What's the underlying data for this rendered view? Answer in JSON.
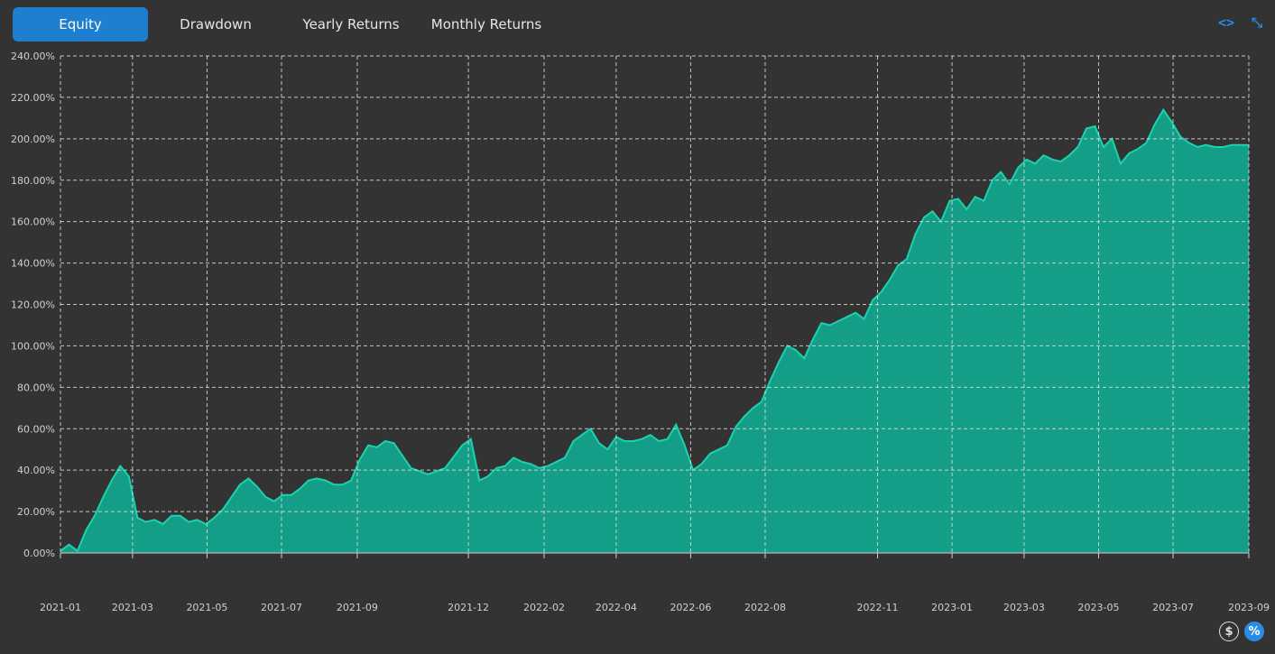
{
  "tabs": [
    {
      "label": "Equity",
      "active": true
    },
    {
      "label": "Drawdown",
      "active": false
    },
    {
      "label": "Yearly Returns",
      "active": false
    },
    {
      "label": "Monthly Returns",
      "active": false
    }
  ],
  "toolbar": {
    "code_icon": "code-icon",
    "collapse_icon": "collapse-icon",
    "code_glyph": "<>",
    "collapse_glyph": "⤡"
  },
  "unit_toggle": {
    "dollar_label": "$",
    "percent_label": "%",
    "selected": "percent"
  },
  "colors": {
    "accent": "#1e7fd1",
    "area_fill": "#159e87",
    "area_line": "#1ad3ad",
    "grid": "#dddddd",
    "background": "#333333"
  },
  "chart_data": {
    "type": "area",
    "title": "",
    "xlabel": "",
    "ylabel": "",
    "ylim": [
      0,
      240
    ],
    "yticks": [
      "0.00%",
      "20.00%",
      "40.00%",
      "60.00%",
      "80.00%",
      "100.00%",
      "120.00%",
      "140.00%",
      "160.00%",
      "180.00%",
      "200.00%",
      "220.00%",
      "240.00%"
    ],
    "xticks": [
      "2021-01",
      "2021-03",
      "2021-05",
      "2021-07",
      "2021-09",
      "2021-12",
      "2022-02",
      "2022-04",
      "2022-06",
      "2022-08",
      "2022-11",
      "2023-01",
      "2023-03",
      "2023-05",
      "2023-07",
      "2023-09"
    ],
    "grid": true,
    "series": [
      {
        "x": [
          "2021-01-01",
          "2021-01-08",
          "2021-01-15",
          "2021-01-22",
          "2021-01-29",
          "2021-02-05",
          "2021-02-12",
          "2021-02-19",
          "2021-02-26",
          "2021-03-05",
          "2021-03-12",
          "2021-03-19",
          "2021-03-26",
          "2021-04-02",
          "2021-04-09",
          "2021-04-16",
          "2021-04-23",
          "2021-04-30",
          "2021-05-07",
          "2021-05-14",
          "2021-05-21",
          "2021-05-28",
          "2021-06-04",
          "2021-06-11",
          "2021-06-18",
          "2021-06-25",
          "2021-07-02",
          "2021-07-09",
          "2021-07-16",
          "2021-07-23",
          "2021-07-30",
          "2021-08-06",
          "2021-08-13",
          "2021-08-20",
          "2021-08-27",
          "2021-09-03",
          "2021-09-10",
          "2021-09-17",
          "2021-09-24",
          "2021-10-01",
          "2021-10-15",
          "2021-10-29",
          "2021-11-12",
          "2021-11-26",
          "2021-12-03",
          "2021-12-10",
          "2021-12-17",
          "2021-12-24",
          "2021-12-31",
          "2022-01-07",
          "2022-01-14",
          "2022-01-21",
          "2022-01-28",
          "2022-02-04",
          "2022-02-11",
          "2022-02-18",
          "2022-02-25",
          "2022-03-04",
          "2022-03-11",
          "2022-03-18",
          "2022-03-25",
          "2022-04-01",
          "2022-04-08",
          "2022-04-15",
          "2022-04-22",
          "2022-04-29",
          "2022-05-06",
          "2022-05-13",
          "2022-05-20",
          "2022-05-27",
          "2022-06-03",
          "2022-06-10",
          "2022-06-17",
          "2022-06-24",
          "2022-07-01",
          "2022-07-08",
          "2022-07-15",
          "2022-07-22",
          "2022-07-29",
          "2022-08-05",
          "2022-08-12",
          "2022-08-19",
          "2022-08-26",
          "2022-09-02",
          "2022-09-09",
          "2022-09-16",
          "2022-09-23",
          "2022-09-30",
          "2022-10-07",
          "2022-10-14",
          "2022-10-21",
          "2022-10-28",
          "2022-11-04",
          "2022-11-11",
          "2022-11-18",
          "2022-11-25",
          "2022-12-02",
          "2022-12-09",
          "2022-12-16",
          "2022-12-23",
          "2022-12-30",
          "2023-01-06",
          "2023-01-13",
          "2023-01-20",
          "2023-01-27",
          "2023-02-03",
          "2023-02-10",
          "2023-02-17",
          "2023-02-24",
          "2023-03-03",
          "2023-03-10",
          "2023-03-17",
          "2023-03-24",
          "2023-03-31",
          "2023-04-07",
          "2023-04-14",
          "2023-04-21",
          "2023-04-28",
          "2023-05-05",
          "2023-05-12",
          "2023-05-19",
          "2023-05-26",
          "2023-06-02",
          "2023-06-09",
          "2023-06-16",
          "2023-06-23",
          "2023-06-30",
          "2023-07-07",
          "2023-07-14",
          "2023-07-21",
          "2023-07-28",
          "2023-08-04",
          "2023-08-11",
          "2023-08-18",
          "2023-08-25",
          "2023-09-01"
        ],
        "y": [
          1,
          4,
          1,
          11,
          18,
          27,
          35,
          42,
          37,
          17,
          15,
          16,
          14,
          18,
          18,
          15,
          16,
          14,
          17,
          21,
          27,
          33,
          36,
          32,
          27,
          25,
          28,
          28,
          31,
          35,
          36,
          35,
          33,
          33,
          35,
          45,
          52,
          51,
          54,
          53,
          41,
          38,
          41,
          52,
          55,
          35,
          37,
          41,
          42,
          46,
          44,
          43,
          41,
          42,
          44,
          46,
          54,
          57,
          60,
          53,
          50,
          56,
          54,
          54,
          55,
          57,
          54,
          55,
          62,
          52,
          40,
          43,
          48,
          50,
          52,
          61,
          66,
          70,
          73,
          83,
          92,
          100,
          98,
          94,
          103,
          111,
          110,
          112,
          114,
          116,
          113,
          122,
          126,
          132,
          139,
          142,
          154,
          162,
          165,
          160,
          170,
          171,
          166,
          172,
          170,
          180,
          184,
          178,
          186,
          190,
          188,
          192,
          190,
          189,
          192,
          196,
          205,
          206,
          196,
          200,
          188,
          193,
          195,
          198,
          207,
          214,
          208,
          201,
          198,
          196,
          197,
          196,
          196,
          197,
          197,
          197
        ],
        "style": "filled-area"
      }
    ],
    "legend": "none"
  }
}
